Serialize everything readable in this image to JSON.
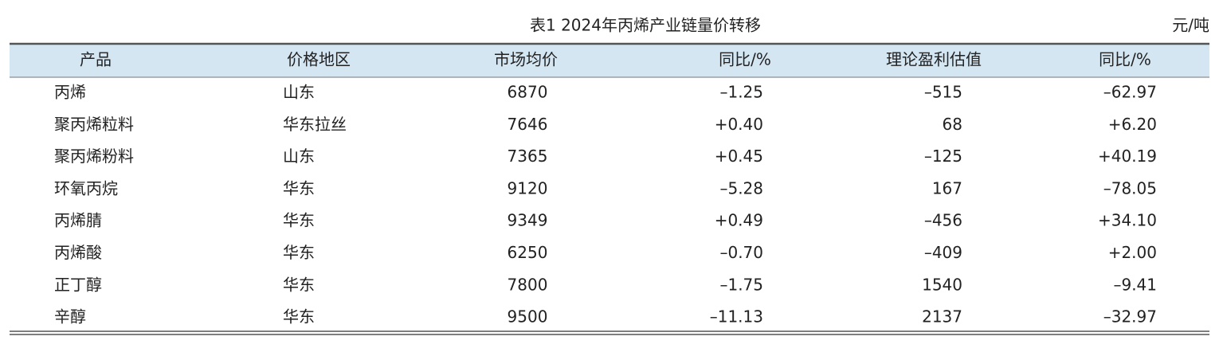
{
  "header": {
    "title": "表1  2024年丙烯产业链量价转移",
    "unit": "元/吨"
  },
  "table": {
    "columns": [
      "产品",
      "价格地区",
      "市场均价",
      "同比/%",
      "理论盈利估值",
      "同比/%"
    ],
    "rows": [
      [
        "丙烯",
        "山东",
        "6870",
        "–1.25",
        "–515",
        "–62.97"
      ],
      [
        "聚丙烯粒料",
        "华东拉丝",
        "7646",
        "+0.40",
        "68",
        "+6.20"
      ],
      [
        "聚丙烯粉料",
        "山东",
        "7365",
        "+0.45",
        "–125",
        "+40.19"
      ],
      [
        "环氧丙烷",
        "华东",
        "9120",
        "–5.28",
        "167",
        "–78.05"
      ],
      [
        "丙烯腈",
        "华东",
        "9349",
        "+0.49",
        "–456",
        "+34.10"
      ],
      [
        "丙烯酸",
        "华东",
        "6250",
        "–0.70",
        "–409",
        "+2.00"
      ],
      [
        "正丁醇",
        "华东",
        "7800",
        "–1.75",
        "1540",
        "–9.41"
      ],
      [
        "辛醇",
        "华东",
        "9500",
        "–11.13",
        "2137",
        "–32.97"
      ]
    ]
  }
}
